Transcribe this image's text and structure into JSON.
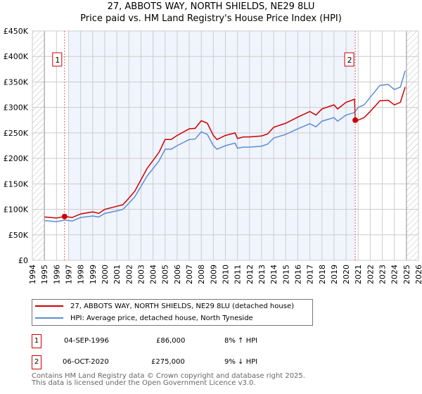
{
  "header": {
    "title": "27, ABBOTS WAY, NORTH SHIELDS, NE29 8LU",
    "subtitle": "Price paid vs. HM Land Registry's House Price Index (HPI)"
  },
  "chart_data": {
    "type": "line",
    "title": "27, ABBOTS WAY, NORTH SHIELDS, NE29 8LU",
    "xlim": [
      1994,
      2026
    ],
    "ylim": [
      0,
      450000
    ],
    "x_ticks": [
      "1994",
      "1995",
      "1996",
      "1997",
      "1998",
      "1999",
      "2000",
      "2001",
      "2002",
      "2003",
      "2004",
      "2005",
      "2006",
      "2007",
      "2008",
      "2009",
      "2010",
      "2011",
      "2012",
      "2013",
      "2014",
      "2015",
      "2016",
      "2017",
      "2018",
      "2019",
      "2020",
      "2021",
      "2022",
      "2023",
      "2024",
      "2025",
      "2026"
    ],
    "y_ticks": [
      {
        "v": 0,
        "label": "£0"
      },
      {
        "v": 50000,
        "label": "£50K"
      },
      {
        "v": 100000,
        "label": "£100K"
      },
      {
        "v": 150000,
        "label": "£150K"
      },
      {
        "v": 200000,
        "label": "£200K"
      },
      {
        "v": 250000,
        "label": "£250K"
      },
      {
        "v": 300000,
        "label": "£300K"
      },
      {
        "v": 350000,
        "label": "£350K"
      },
      {
        "v": 400000,
        "label": "£400K"
      },
      {
        "v": 450000,
        "label": "£450K"
      }
    ],
    "grid": true,
    "series": [
      {
        "name": "27, ABBOTS WAY, NORTH SHIELDS, NE29 8LU (detached house)",
        "color": "#cc0000",
        "x": [
          1995,
          1996,
          1996.7,
          1997.3,
          1998,
          1999,
          1999.5,
          2000,
          2001,
          2001.5,
          2002,
          2002.5,
          2003,
          2003.5,
          2004,
          2004.5,
          2005,
          2005.5,
          2006,
          2007,
          2007.5,
          2008,
          2008.5,
          2009,
          2009.3,
          2010,
          2010.8,
          2011,
          2011.5,
          2012,
          2013,
          2013.5,
          2014,
          2015,
          2016,
          2017,
          2017.5,
          2018,
          2019,
          2019.3,
          2020,
          2020.7,
          2020.76,
          2021,
          2021.5,
          2022,
          2022.8,
          2023.5,
          2024,
          2024.5,
          2024.9
        ],
        "y": [
          85000,
          83000,
          86000,
          84000,
          91000,
          95000,
          92000,
          100000,
          106000,
          109000,
          122000,
          136000,
          158000,
          180000,
          196000,
          212000,
          237000,
          237000,
          245000,
          258000,
          259000,
          274000,
          269000,
          245000,
          237000,
          245000,
          250000,
          239000,
          242000,
          242000,
          244000,
          248000,
          261000,
          269000,
          281000,
          292000,
          285000,
          297000,
          305000,
          297000,
          310000,
          316000,
          275000,
          275000,
          280000,
          292000,
          313000,
          314000,
          305000,
          310000,
          340000
        ]
      },
      {
        "name": "HPI: Average price, detached house, North Tyneside",
        "color": "#5b8fd4",
        "x": [
          1995,
          1996,
          1996.7,
          1997.3,
          1998,
          1999,
          1999.5,
          2000,
          2001,
          2001.5,
          2002,
          2002.5,
          2003,
          2003.5,
          2004,
          2004.5,
          2005,
          2005.5,
          2006,
          2007,
          2007.5,
          2008,
          2008.5,
          2009,
          2009.3,
          2010,
          2010.8,
          2011,
          2011.5,
          2012,
          2013,
          2013.5,
          2014,
          2015,
          2016,
          2017,
          2017.5,
          2018,
          2019,
          2019.3,
          2020,
          2020.7,
          2021,
          2021.5,
          2022,
          2022.8,
          2023.5,
          2024,
          2024.5,
          2024.9
        ],
        "y": [
          78000,
          76000,
          79000,
          77000,
          84000,
          87000,
          85000,
          92000,
          97000,
          100000,
          112000,
          125000,
          145000,
          165000,
          180000,
          195000,
          218000,
          218000,
          225000,
          237000,
          238000,
          252000,
          247000,
          225000,
          218000,
          225000,
          230000,
          220000,
          222000,
          222000,
          224000,
          228000,
          240000,
          247000,
          258000,
          268000,
          262000,
          273000,
          280000,
          273000,
          285000,
          290000,
          300000,
          305000,
          320000,
          343000,
          345000,
          335000,
          340000,
          372000
        ]
      }
    ],
    "annotations": [
      {
        "label": "1",
        "x": 1996.67,
        "y": 86000
      },
      {
        "label": "2",
        "x": 2020.76,
        "y": 275000
      }
    ],
    "shaded_range": [
      1997,
      2020.76
    ],
    "hatched_ranges": [
      [
        1994,
        1995
      ],
      [
        2025,
        2026
      ]
    ]
  },
  "legend": {
    "items": [
      {
        "label": "27, ABBOTS WAY, NORTH SHIELDS, NE29 8LU (detached house)",
        "color": "#cc0000"
      },
      {
        "label": "HPI: Average price, detached house, North Tyneside",
        "color": "#5b8fd4"
      }
    ]
  },
  "transactions": [
    {
      "num": "1",
      "date": "04-SEP-1996",
      "price": "£86,000",
      "hpi": "8% ↑ HPI"
    },
    {
      "num": "2",
      "date": "06-OCT-2020",
      "price": "£275,000",
      "hpi": "9% ↓ HPI"
    }
  ],
  "footer": {
    "line1": "Contains HM Land Registry data © Crown copyright and database right 2025.",
    "line2": "This data is licensed under the Open Government Licence v3.0."
  }
}
